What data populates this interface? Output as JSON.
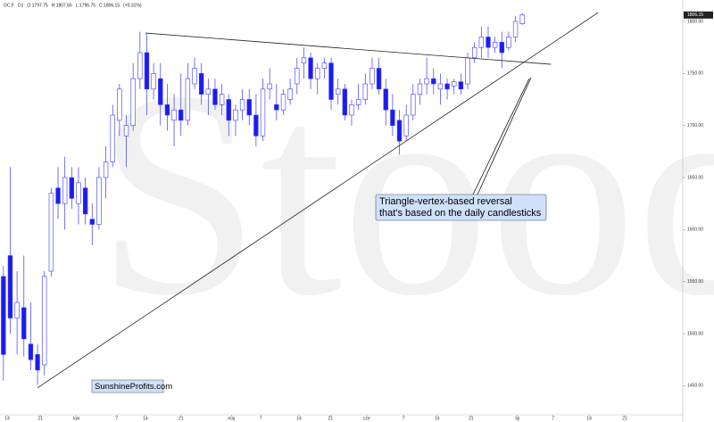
{
  "chart_data": {
    "type": "candlestick",
    "header": [
      "GC.F",
      "D1",
      "O:1797.75",
      "H:1807.65",
      "L:1796.75",
      "C:1806.15",
      "(+0.31%)"
    ],
    "watermark": "Stooq",
    "up_color": "#ffffff",
    "down_color": "#1c1cf0",
    "edge_color": "#3a3af5",
    "xlim": [
      -0.5,
      99.5
    ],
    "ylim": [
      1422,
      1812
    ],
    "xticks": [
      {
        "value": 0.55,
        "label": "14"
      },
      {
        "value": 5.4,
        "label": "21"
      },
      {
        "value": 10.7,
        "label": "kwi"
      },
      {
        "value": 16.6,
        "label": "7"
      },
      {
        "value": 20.8,
        "label": "14"
      },
      {
        "value": 26,
        "label": "21"
      },
      {
        "value": 33.4,
        "label": "maj"
      },
      {
        "value": 37.7,
        "label": "7"
      },
      {
        "value": 43.3,
        "label": "14"
      },
      {
        "value": 47.9,
        "label": "21"
      },
      {
        "value": 53.2,
        "label": "cze"
      },
      {
        "value": 58.6,
        "label": "7"
      },
      {
        "value": 63.5,
        "label": "14"
      },
      {
        "value": 68.5,
        "label": "21"
      },
      {
        "value": 75.3,
        "label": "lip"
      },
      {
        "value": 80.5,
        "label": "7"
      },
      {
        "value": 85.8,
        "label": "14"
      },
      {
        "value": 91,
        "label": "21"
      }
    ],
    "yticks": [
      {
        "value": 1450,
        "label": "1450.00"
      },
      {
        "value": 1500,
        "label": "1500.00"
      },
      {
        "value": 1550,
        "label": "1550.00"
      },
      {
        "value": 1600,
        "label": "1600.00"
      },
      {
        "value": 1650,
        "label": "1650.00"
      },
      {
        "value": 1700,
        "label": "1700.00"
      },
      {
        "value": 1750,
        "label": "1750.00"
      },
      {
        "value": 1800,
        "label": "1800.00"
      }
    ],
    "last_price": 1806.15,
    "open": [
      1555,
      1575,
      1515,
      1525,
      1490,
      1480,
      1470,
      1560,
      1640,
      1625,
      1650,
      1625,
      1640,
      1610,
      1605,
      1650,
      1665,
      1705,
      1690,
      1700,
      1745,
      1770,
      1735,
      1745,
      1720,
      1705,
      1715,
      1705,
      1740,
      1750,
      1730,
      1735,
      1720,
      1725,
      1705,
      1715,
      1725,
      1710,
      1690,
      1735,
      1720,
      1715,
      1725,
      1740,
      1760,
      1765,
      1745,
      1755,
      1760,
      1730,
      1735,
      1710,
      1720,
      1725,
      1740,
      1755,
      1735,
      1715,
      1705,
      1690,
      1710,
      1730,
      1740,
      1745,
      1735,
      1740,
      1738,
      1742,
      1740,
      1765,
      1775,
      1785,
      1775,
      1780,
      1775,
      1785,
      1797.75
    ],
    "high": [
      1565,
      1660,
      1560,
      1575,
      1530,
      1490,
      1560,
      1640,
      1660,
      1670,
      1660,
      1660,
      1650,
      1625,
      1660,
      1680,
      1720,
      1740,
      1710,
      1760,
      1790,
      1788,
      1760,
      1760,
      1740,
      1730,
      1750,
      1760,
      1765,
      1760,
      1745,
      1745,
      1740,
      1730,
      1720,
      1735,
      1735,
      1730,
      1745,
      1755,
      1740,
      1735,
      1745,
      1765,
      1775,
      1770,
      1760,
      1765,
      1765,
      1745,
      1740,
      1725,
      1740,
      1750,
      1765,
      1765,
      1745,
      1730,
      1715,
      1720,
      1740,
      1745,
      1765,
      1755,
      1750,
      1745,
      1745,
      1750,
      1770,
      1780,
      1795,
      1795,
      1785,
      1790,
      1790,
      1805,
      1807.65
    ],
    "low": [
      1455,
      1500,
      1480,
      1478,
      1465,
      1451,
      1460,
      1555,
      1610,
      1600,
      1620,
      1605,
      1605,
      1585,
      1600,
      1630,
      1660,
      1690,
      1660,
      1695,
      1735,
      1710,
      1725,
      1700,
      1695,
      1680,
      1690,
      1700,
      1735,
      1720,
      1710,
      1715,
      1710,
      1690,
      1690,
      1705,
      1700,
      1680,
      1685,
      1725,
      1705,
      1710,
      1720,
      1730,
      1745,
      1735,
      1730,
      1745,
      1715,
      1720,
      1705,
      1700,
      1715,
      1720,
      1735,
      1730,
      1700,
      1690,
      1672,
      1685,
      1705,
      1720,
      1730,
      1730,
      1720,
      1725,
      1730,
      1730,
      1735,
      1760,
      1765,
      1765,
      1770,
      1755,
      1772,
      1780,
      1796.75
    ],
    "close": [
      1480,
      1515,
      1530,
      1495,
      1475,
      1465,
      1555,
      1635,
      1625,
      1650,
      1630,
      1645,
      1615,
      1605,
      1650,
      1665,
      1710,
      1735,
      1700,
      1745,
      1770,
      1735,
      1750,
      1720,
      1710,
      1715,
      1705,
      1745,
      1755,
      1730,
      1735,
      1720,
      1730,
      1705,
      1715,
      1725,
      1710,
      1690,
      1735,
      1740,
      1715,
      1730,
      1735,
      1755,
      1765,
      1745,
      1755,
      1760,
      1725,
      1735,
      1710,
      1720,
      1725,
      1740,
      1755,
      1735,
      1715,
      1700,
      1685,
      1710,
      1730,
      1740,
      1745,
      1740,
      1740,
      1735,
      1742,
      1735,
      1765,
      1775,
      1785,
      1775,
      1780,
      1770,
      1785,
      1800,
      1806.15
    ],
    "trendlines": [
      {
        "x": [
          5.0,
          87.1
        ],
        "y": [
          1448,
          1808.5
        ]
      },
      {
        "x": [
          20.8,
          80.2
        ],
        "y": [
          1788.8,
          1758.8
        ]
      }
    ],
    "annotation": [
      "Triangle-vertex-based reversal",
      "that's based on the daily candlesticks"
    ],
    "credit": "SunshineProfits.com"
  }
}
